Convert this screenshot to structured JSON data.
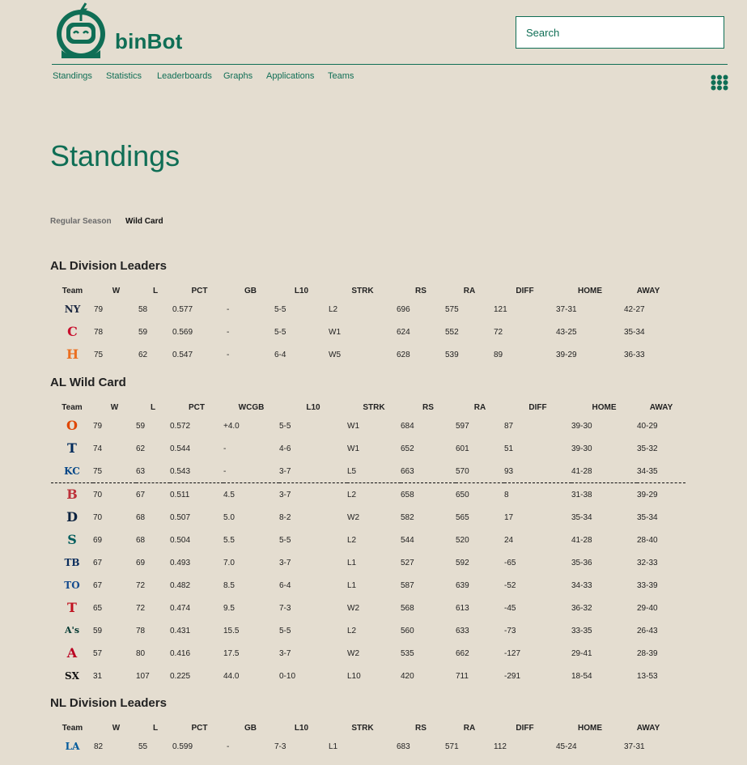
{
  "app": {
    "brand": "binBot"
  },
  "search": {
    "placeholder": "Search"
  },
  "nav": {
    "items": [
      "Standings",
      "Statistics",
      "Leaderboards",
      "Graphs",
      "Applications",
      "Teams"
    ]
  },
  "page": {
    "title": "Standings"
  },
  "tabs": {
    "regular_season": "Regular Season",
    "wild_card": "Wild Card"
  },
  "colors": {
    "brand": "#0f6e55",
    "positive": "#2a8a2a",
    "negative": "#c0201e",
    "background": "#e4ddd0"
  },
  "al_division_leaders": {
    "title": "AL Division Leaders",
    "columns": [
      "Team",
      "W",
      "L",
      "PCT",
      "GB",
      "L10",
      "STRK",
      "RS",
      "RA",
      "DIFF",
      "HOME",
      "AWAY"
    ],
    "rows": [
      {
        "logo": "NY",
        "color": "#1c2841",
        "W": "79",
        "L": "58",
        "PCT": "0.577",
        "GB": "-",
        "L10": "5-5",
        "STRK": "L2",
        "RS": "696",
        "RA": "575",
        "DIFF": "121",
        "HOME": "37-31",
        "AWAY": "42-27"
      },
      {
        "logo": "C",
        "color": "#c8102e",
        "W": "78",
        "L": "59",
        "PCT": "0.569",
        "GB": "-",
        "L10": "5-5",
        "STRK": "W1",
        "RS": "624",
        "RA": "552",
        "DIFF": "72",
        "HOME": "43-25",
        "AWAY": "35-34"
      },
      {
        "logo": "H",
        "color": "#eb6e1f",
        "W": "75",
        "L": "62",
        "PCT": "0.547",
        "GB": "-",
        "L10": "6-4",
        "STRK": "W5",
        "RS": "628",
        "RA": "539",
        "DIFF": "89",
        "HOME": "39-29",
        "AWAY": "36-33"
      }
    ]
  },
  "al_wild_card": {
    "title": "AL Wild Card",
    "columns": [
      "Team",
      "W",
      "L",
      "PCT",
      "WCGB",
      "L10",
      "STRK",
      "RS",
      "RA",
      "DIFF",
      "HOME",
      "AWAY"
    ],
    "rows": [
      {
        "logo": "O",
        "color": "#df4601",
        "W": "79",
        "L": "59",
        "PCT": "0.572",
        "WCGB": "+4.0",
        "L10": "5-5",
        "STRK": "W1",
        "RS": "684",
        "RA": "597",
        "DIFF": "87",
        "HOME": "39-30",
        "AWAY": "40-29"
      },
      {
        "logo": "T",
        "color": "#002b5c",
        "W": "74",
        "L": "62",
        "PCT": "0.544",
        "WCGB": "-",
        "L10": "4-6",
        "STRK": "W1",
        "RS": "652",
        "RA": "601",
        "DIFF": "51",
        "HOME": "39-30",
        "AWAY": "35-32"
      },
      {
        "logo": "KC",
        "color": "#004687",
        "W": "75",
        "L": "63",
        "PCT": "0.543",
        "WCGB": "-",
        "L10": "3-7",
        "STRK": "L5",
        "RS": "663",
        "RA": "570",
        "DIFF": "93",
        "HOME": "41-28",
        "AWAY": "34-35"
      },
      {
        "logo": "B",
        "color": "#bd3039",
        "W": "70",
        "L": "67",
        "PCT": "0.511",
        "WCGB": "4.5",
        "L10": "3-7",
        "STRK": "L2",
        "RS": "658",
        "RA": "650",
        "DIFF": "8",
        "HOME": "31-38",
        "AWAY": "39-29"
      },
      {
        "logo": "D",
        "color": "#0c2340",
        "W": "70",
        "L": "68",
        "PCT": "0.507",
        "WCGB": "5.0",
        "L10": "8-2",
        "STRK": "W2",
        "RS": "582",
        "RA": "565",
        "DIFF": "17",
        "HOME": "35-34",
        "AWAY": "35-34"
      },
      {
        "logo": "S",
        "color": "#005c5c",
        "W": "69",
        "L": "68",
        "PCT": "0.504",
        "WCGB": "5.5",
        "L10": "5-5",
        "STRK": "L2",
        "RS": "544",
        "RA": "520",
        "DIFF": "24",
        "HOME": "41-28",
        "AWAY": "28-40"
      },
      {
        "logo": "TB",
        "color": "#092c5c",
        "W": "67",
        "L": "69",
        "PCT": "0.493",
        "WCGB": "7.0",
        "L10": "3-7",
        "STRK": "L1",
        "RS": "527",
        "RA": "592",
        "DIFF": "-65",
        "HOME": "35-36",
        "AWAY": "32-33"
      },
      {
        "logo": "TO",
        "color": "#134a8e",
        "W": "67",
        "L": "72",
        "PCT": "0.482",
        "WCGB": "8.5",
        "L10": "6-4",
        "STRK": "L1",
        "RS": "587",
        "RA": "639",
        "DIFF": "-52",
        "HOME": "34-33",
        "AWAY": "33-39"
      },
      {
        "logo": "T",
        "color": "#c0111f",
        "W": "65",
        "L": "72",
        "PCT": "0.474",
        "WCGB": "9.5",
        "L10": "7-3",
        "STRK": "W2",
        "RS": "568",
        "RA": "613",
        "DIFF": "-45",
        "HOME": "36-32",
        "AWAY": "29-40"
      },
      {
        "logo": "A's",
        "color": "#003831",
        "W": "59",
        "L": "78",
        "PCT": "0.431",
        "WCGB": "15.5",
        "L10": "5-5",
        "STRK": "L2",
        "RS": "560",
        "RA": "633",
        "DIFF": "-73",
        "HOME": "33-35",
        "AWAY": "26-43"
      },
      {
        "logo": "A",
        "color": "#ba0021",
        "W": "57",
        "L": "80",
        "PCT": "0.416",
        "WCGB": "17.5",
        "L10": "3-7",
        "STRK": "W2",
        "RS": "535",
        "RA": "662",
        "DIFF": "-127",
        "HOME": "29-41",
        "AWAY": "28-39"
      },
      {
        "logo": "SX",
        "color": "#111111",
        "W": "31",
        "L": "107",
        "PCT": "0.225",
        "WCGB": "44.0",
        "L10": "0-10",
        "STRK": "L10",
        "RS": "420",
        "RA": "711",
        "DIFF": "-291",
        "HOME": "18-54",
        "AWAY": "13-53"
      }
    ]
  },
  "nl_division_leaders": {
    "title": "NL Division Leaders",
    "columns": [
      "Team",
      "W",
      "L",
      "PCT",
      "GB",
      "L10",
      "STRK",
      "RS",
      "RA",
      "DIFF",
      "HOME",
      "AWAY"
    ],
    "rows": [
      {
        "logo": "LA",
        "color": "#005a9c",
        "W": "82",
        "L": "55",
        "PCT": "0.599",
        "GB": "-",
        "L10": "7-3",
        "STRK": "L1",
        "RS": "683",
        "RA": "571",
        "DIFF": "112",
        "HOME": "45-24",
        "AWAY": "37-31"
      }
    ]
  }
}
